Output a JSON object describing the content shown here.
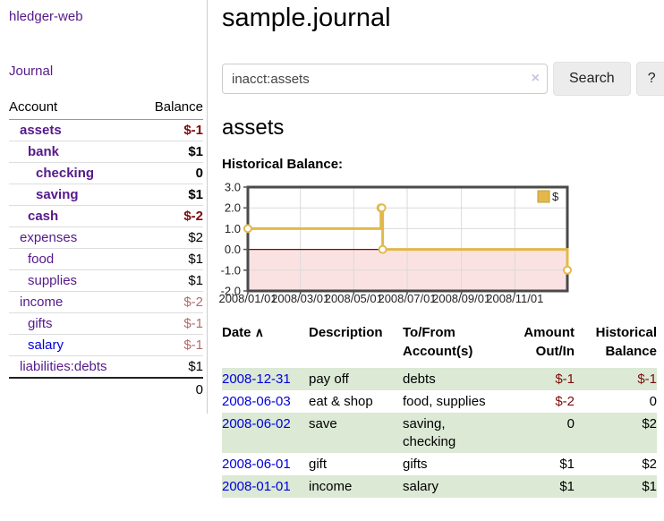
{
  "colors": {
    "link_purple": "#551a8b",
    "link_blue": "#0000dd",
    "negative_strong": "#7d0c0c",
    "negative_soft": "#b36b6b",
    "row_green": "#dbe9d5",
    "chart_gold": "#e3b84a"
  },
  "sidebar": {
    "app_title": "hledger-web",
    "nav": {
      "journal": "Journal"
    },
    "accounts_table": {
      "account_header": "Account",
      "balance_header": "Balance",
      "rows": [
        {
          "name": "assets",
          "balance": "$-1"
        },
        {
          "name": "bank",
          "balance": "$1"
        },
        {
          "name": "checking",
          "balance": "0"
        },
        {
          "name": "saving",
          "balance": "$1"
        },
        {
          "name": "cash",
          "balance": "$-2"
        },
        {
          "name": "expenses",
          "balance": "$2"
        },
        {
          "name": "food",
          "balance": "$1"
        },
        {
          "name": "supplies",
          "balance": "$1"
        },
        {
          "name": "income",
          "balance": "$-2"
        },
        {
          "name": "gifts",
          "balance": "$-1"
        },
        {
          "name": "salary",
          "balance": "$-1"
        },
        {
          "name": "liabilities:debts",
          "balance": "$1"
        }
      ],
      "total": "0"
    }
  },
  "main": {
    "title": "sample.journal",
    "search": {
      "query": "inacct:assets",
      "clear_icon": "×",
      "search_button": "Search",
      "help_button": "?"
    },
    "account_heading": "assets",
    "chart_title": "Historical Balance:"
  },
  "chart_data": {
    "type": "line",
    "step": "after",
    "title": "Historical Balance:",
    "legend": [
      {
        "label": "$",
        "position": "top-right"
      }
    ],
    "x_start": "2008-01-01",
    "x_end": "2008-12-31",
    "xticks": [
      {
        "label": "2008/01/01",
        "date": "2008-01-01"
      },
      {
        "label": "2008/03/01",
        "date": "2008-03-01"
      },
      {
        "label": "2008/05/01",
        "date": "2008-05-01"
      },
      {
        "label": "2008/07/01",
        "date": "2008-07-01"
      },
      {
        "label": "2008/09/01",
        "date": "2008-09-01"
      },
      {
        "label": "2008/11/01",
        "date": "2008-11-01"
      }
    ],
    "ylim": [
      -2.0,
      3.0
    ],
    "yticks": [
      3.0,
      2.0,
      1.0,
      0.0,
      -1.0,
      -2.0
    ],
    "grid": true,
    "series": [
      {
        "name": "$",
        "points": [
          [
            "2008-01-01",
            1
          ],
          [
            "2008-06-01",
            2
          ],
          [
            "2008-06-02",
            2
          ],
          [
            "2008-06-03",
            0
          ],
          [
            "2008-12-31",
            -1
          ]
        ]
      }
    ],
    "style": {
      "line_color": "#e3b84a",
      "marker_fill": "#ffffff",
      "negative_region_fill": "#fbe2e2",
      "zero_line_color": "#8b0000",
      "grid_color": "#dadada",
      "border_color": "#4a4a4a",
      "tick_color": "#555555",
      "legend_square_stroke": "#c49e35"
    }
  },
  "register": {
    "headers": {
      "date": "Date",
      "description": "Description",
      "tofrom": "To/From Account(s)",
      "amount": "Amount Out/In",
      "balance": "Historical Balance"
    },
    "sort_icon": "∧",
    "rows": [
      {
        "date": "2008-12-31",
        "description": "pay off",
        "accounts": "debts",
        "amount": "$-1",
        "balance": "$-1"
      },
      {
        "date": "2008-06-03",
        "description": "eat & shop",
        "accounts": "food, supplies",
        "amount": "$-2",
        "balance": "0"
      },
      {
        "date": "2008-06-02",
        "description": "save",
        "accounts": "saving, checking",
        "amount": "0",
        "balance": "$2"
      },
      {
        "date": "2008-06-01",
        "description": "gift",
        "accounts": "gifts",
        "amount": "$1",
        "balance": "$2"
      },
      {
        "date": "2008-01-01",
        "description": "income",
        "accounts": "salary",
        "amount": "$1",
        "balance": "$1"
      }
    ]
  }
}
